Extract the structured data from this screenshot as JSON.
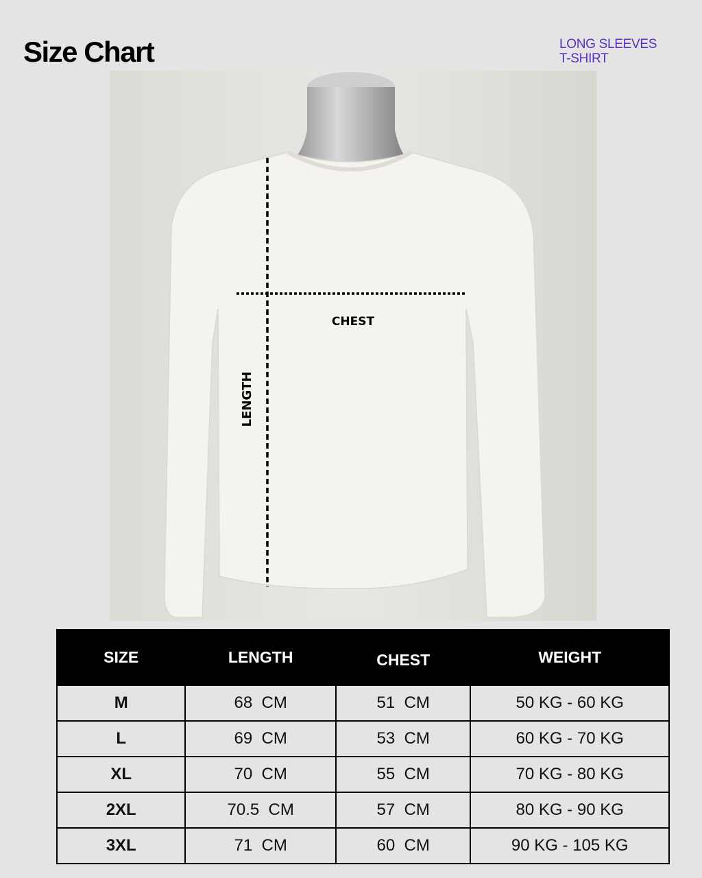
{
  "header": {
    "title": "Size Chart",
    "product_line1": "LONG SLEEVES",
    "product_line2": "T-SHIRT"
  },
  "diagram": {
    "chest_label": "CHEST",
    "length_label": "LENGTH"
  },
  "table": {
    "columns": [
      "SIZE",
      "LENGTH",
      "CHEST",
      "WEIGHT"
    ],
    "rows": [
      [
        "M",
        "68  CM",
        "51  CM",
        "50 KG - 60 KG"
      ],
      [
        "L",
        "69  CM",
        "53  CM",
        "60 KG - 70 KG"
      ],
      [
        "XL",
        "70  CM",
        "55  CM",
        "70 KG - 80 KG"
      ],
      [
        "2XL",
        "70.5  CM",
        "57  CM",
        "80 KG - 90 KG"
      ],
      [
        "3XL",
        "71  CM",
        "60  CM",
        "90 KG - 105 KG"
      ]
    ]
  },
  "colors": {
    "accent": "#5a2fc2",
    "header_bg": "#000000",
    "background": "#e4e4e4"
  }
}
